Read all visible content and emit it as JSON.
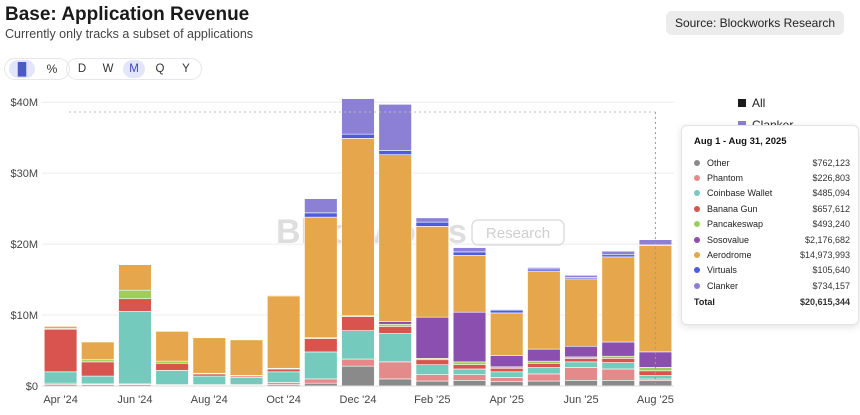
{
  "header": {
    "title": "Base: Application Revenue",
    "subtitle": "Currently only tracks a subset of applications",
    "source_label": "Source: Blockworks Research"
  },
  "toolbar": {
    "chart_icons": [
      {
        "icon": "bar-chart-icon",
        "glyph": "▐▌",
        "active": true
      },
      {
        "icon": "percent-icon",
        "glyph": "%",
        "active": false
      }
    ],
    "periods": [
      {
        "label": "D",
        "active": false
      },
      {
        "label": "W",
        "active": false
      },
      {
        "label": "M",
        "active": true
      },
      {
        "label": "Q",
        "active": false
      },
      {
        "label": "Y",
        "active": false
      }
    ]
  },
  "watermark": {
    "brand": "Blockworks",
    "sub": "Research"
  },
  "legend": {
    "items": [
      {
        "label": "All",
        "color": "#1a1a1a"
      },
      {
        "label": "Clanker",
        "color": "#8c7fd6"
      }
    ]
  },
  "tooltip": {
    "title": "Aug 1 - Aug 31, 2025",
    "rows": [
      {
        "name": "Other",
        "value": "$762,123",
        "color": "#8a8a8a"
      },
      {
        "name": "Phantom",
        "value": "$226,803",
        "color": "#e58a8a"
      },
      {
        "name": "Coinbase Wallet",
        "value": "$485,094",
        "color": "#74cbbd"
      },
      {
        "name": "Banana Gun",
        "value": "$657,612",
        "color": "#d9534f"
      },
      {
        "name": "Pancakeswap",
        "value": "$493,240",
        "color": "#9ccf5a"
      },
      {
        "name": "Sosovalue",
        "value": "$2,176,682",
        "color": "#8b4fb0"
      },
      {
        "name": "Aerodrome",
        "value": "$14,973,993",
        "color": "#e6a64c"
      },
      {
        "name": "Virtuals",
        "value": "$105,640",
        "color": "#4a5de0"
      },
      {
        "name": "Clanker",
        "value": "$734,157",
        "color": "#8c7fd6"
      }
    ],
    "total_label": "Total",
    "total_value": "$20,615,344"
  },
  "chart_data": {
    "type": "bar",
    "stacked": true,
    "title": "Base: Application Revenue",
    "subtitle": "Currently only tracks a subset of applications",
    "xlabel": "",
    "ylabel": "",
    "ylim": [
      0,
      42
    ],
    "y_unit": "$M",
    "y_ticks": [
      {
        "value": 0,
        "label": "$0"
      },
      {
        "value": 10,
        "label": "$10M"
      },
      {
        "value": 20,
        "label": "$20M"
      },
      {
        "value": 30,
        "label": "$30M"
      },
      {
        "value": 40,
        "label": "$40M"
      }
    ],
    "x_tick_labels": [
      {
        "index": 0,
        "label": "Apr '24"
      },
      {
        "index": 2,
        "label": "Jun '24"
      },
      {
        "index": 4,
        "label": "Aug '24"
      },
      {
        "index": 6,
        "label": "Oct '24"
      },
      {
        "index": 8,
        "label": "Dec '24"
      },
      {
        "index": 10,
        "label": "Feb '25"
      },
      {
        "index": 12,
        "label": "Apr '25"
      },
      {
        "index": 14,
        "label": "Jun '25"
      },
      {
        "index": 16,
        "label": "Aug '25"
      }
    ],
    "categories": [
      "Apr 2024",
      "May 2024",
      "Jun 2024",
      "Jul 2024",
      "Aug 2024",
      "Sep 2024",
      "Oct 2024",
      "Nov 2024",
      "Dec 2024",
      "Jan 2025",
      "Feb 2025",
      "Mar 2025",
      "Apr 2025",
      "May 2025",
      "Jun 2025",
      "Jul 2025",
      "Aug 2025"
    ],
    "grid": true,
    "legend_position": "right",
    "series": [
      {
        "name": "Other",
        "color": "#8a8a8a",
        "values": [
          0.2,
          0.2,
          0.2,
          0.1,
          0.1,
          0.1,
          0.2,
          0.4,
          2.8,
          1.0,
          0.7,
          0.8,
          0.6,
          0.7,
          0.8,
          0.8,
          0.76
        ]
      },
      {
        "name": "Phantom",
        "color": "#e58a8a",
        "values": [
          0.2,
          0.1,
          0.1,
          0.1,
          0.1,
          0.1,
          0.3,
          0.6,
          1.0,
          2.4,
          0.9,
          0.8,
          0.6,
          1.0,
          1.8,
          1.6,
          0.23
        ]
      },
      {
        "name": "Coinbase Wallet",
        "color": "#74cbbd",
        "values": [
          1.6,
          1.1,
          10.2,
          2.0,
          1.2,
          1.0,
          1.5,
          3.8,
          4.0,
          4.0,
          1.4,
          0.8,
          0.8,
          0.9,
          0.8,
          0.9,
          0.49
        ]
      },
      {
        "name": "Banana Gun",
        "color": "#d9534f",
        "values": [
          6.0,
          2.0,
          1.8,
          1.0,
          0.3,
          0.2,
          0.4,
          1.9,
          2.0,
          1.0,
          0.7,
          0.6,
          0.5,
          0.6,
          0.5,
          0.6,
          0.66
        ]
      },
      {
        "name": "Pancakeswap",
        "color": "#9ccf5a",
        "values": [
          0.1,
          0.3,
          1.2,
          0.3,
          0.1,
          0.1,
          0.1,
          0.1,
          0.1,
          0.3,
          0.2,
          0.4,
          0.2,
          0.3,
          0.2,
          0.3,
          0.49
        ]
      },
      {
        "name": "Sosovalue",
        "color": "#8b4fb0",
        "values": [
          0.0,
          0.0,
          0.0,
          0.0,
          0.0,
          0.0,
          0.0,
          0.0,
          0.0,
          0.4,
          5.8,
          7.0,
          1.6,
          1.7,
          1.5,
          2.0,
          2.18
        ]
      },
      {
        "name": "Aerodrome",
        "color": "#e6a64c",
        "values": [
          0.3,
          2.5,
          3.6,
          4.2,
          5.0,
          5.0,
          10.2,
          17.0,
          25.0,
          23.5,
          12.8,
          8.0,
          6.0,
          11.0,
          9.5,
          12.0,
          14.97
        ]
      },
      {
        "name": "Virtuals",
        "color": "#4a5de0",
        "values": [
          0.0,
          0.0,
          0.0,
          0.0,
          0.0,
          0.0,
          0.1,
          0.6,
          0.6,
          0.6,
          0.6,
          0.5,
          0.4,
          0.3,
          0.2,
          0.3,
          0.11
        ]
      },
      {
        "name": "Clanker",
        "color": "#8c7fd6",
        "values": [
          0.0,
          0.0,
          0.0,
          0.0,
          0.0,
          0.0,
          0.0,
          2.0,
          5.0,
          6.5,
          0.6,
          0.6,
          0.1,
          0.2,
          0.3,
          0.5,
          0.73
        ]
      }
    ]
  }
}
